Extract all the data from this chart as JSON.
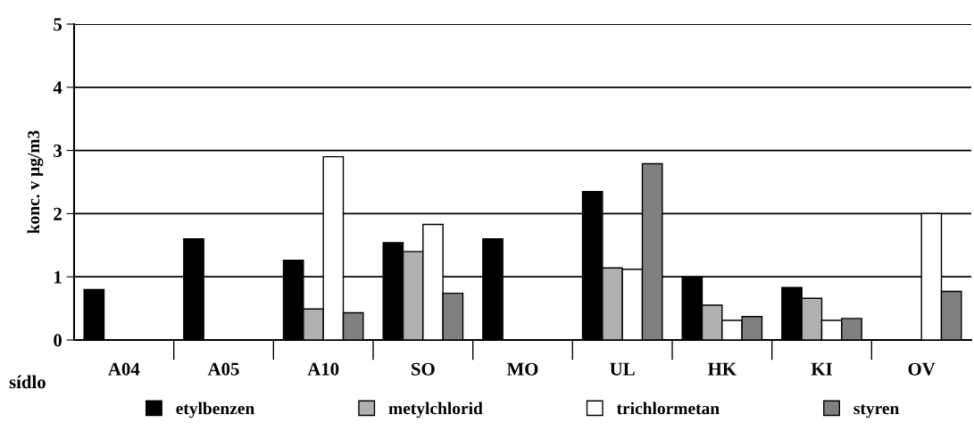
{
  "chart_data": {
    "type": "bar",
    "ylabel": "konc. v µg/m3",
    "xlabel": "sídlo",
    "categories": [
      "A04",
      "A05",
      "A10",
      "SO",
      "MO",
      "UL",
      "HK",
      "KI",
      "OV"
    ],
    "series": [
      {
        "name": "etylbenzen",
        "color": "#000000",
        "values": [
          0.8,
          1.6,
          1.26,
          1.54,
          1.6,
          2.35,
          1.0,
          0.83,
          null
        ]
      },
      {
        "name": "metylchlorid",
        "color": "#b0b0b0",
        "values": [
          null,
          null,
          0.49,
          1.4,
          null,
          1.14,
          0.55,
          0.66,
          null
        ]
      },
      {
        "name": "trichlormetan",
        "color": "#ffffff",
        "values": [
          null,
          null,
          2.9,
          1.83,
          null,
          1.12,
          0.31,
          0.31,
          2.0
        ]
      },
      {
        "name": "styren",
        "color": "#808080",
        "values": [
          null,
          null,
          0.43,
          0.74,
          null,
          2.79,
          0.37,
          0.34,
          0.77
        ]
      }
    ],
    "ylim": [
      0,
      5
    ],
    "yticks": [
      0,
      1,
      2,
      3,
      4,
      5
    ],
    "grid": "y",
    "legend": "bottom"
  }
}
